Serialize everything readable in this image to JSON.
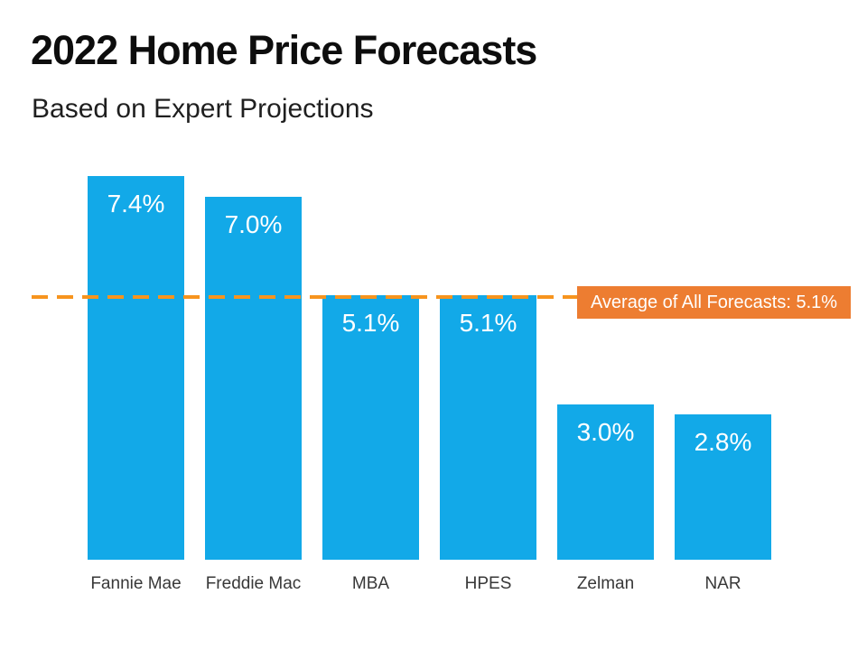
{
  "header": {
    "title": "2022 Home Price Forecasts",
    "subtitle": "Based on Expert Projections"
  },
  "chart_data": {
    "type": "bar",
    "title": "2022 Home Price Forecasts",
    "subtitle": "Based on Expert Projections",
    "categories": [
      "Fannie Mae",
      "Freddie Mac",
      "MBA",
      "HPES",
      "Zelman",
      "NAR"
    ],
    "values": [
      7.4,
      7.0,
      5.1,
      5.1,
      3.0,
      2.8
    ],
    "value_labels": [
      "7.4%",
      "7.0%",
      "5.1%",
      "5.1%",
      "3.0%",
      "2.8%"
    ],
    "average": 5.1,
    "average_label": "Average of All Forecasts: 5.1%",
    "ylabel": "",
    "xlabel": "",
    "ylim": [
      0,
      7.4
    ],
    "grid": false,
    "legend": false,
    "bar_color": "#12A9E8",
    "value_label_color": "#FFFFFF",
    "category_label_color": "#383838",
    "avg_line_color": "#F7941E",
    "avg_box_color": "#ED7D31",
    "avg_box_text_color": "#FFFFFF"
  }
}
